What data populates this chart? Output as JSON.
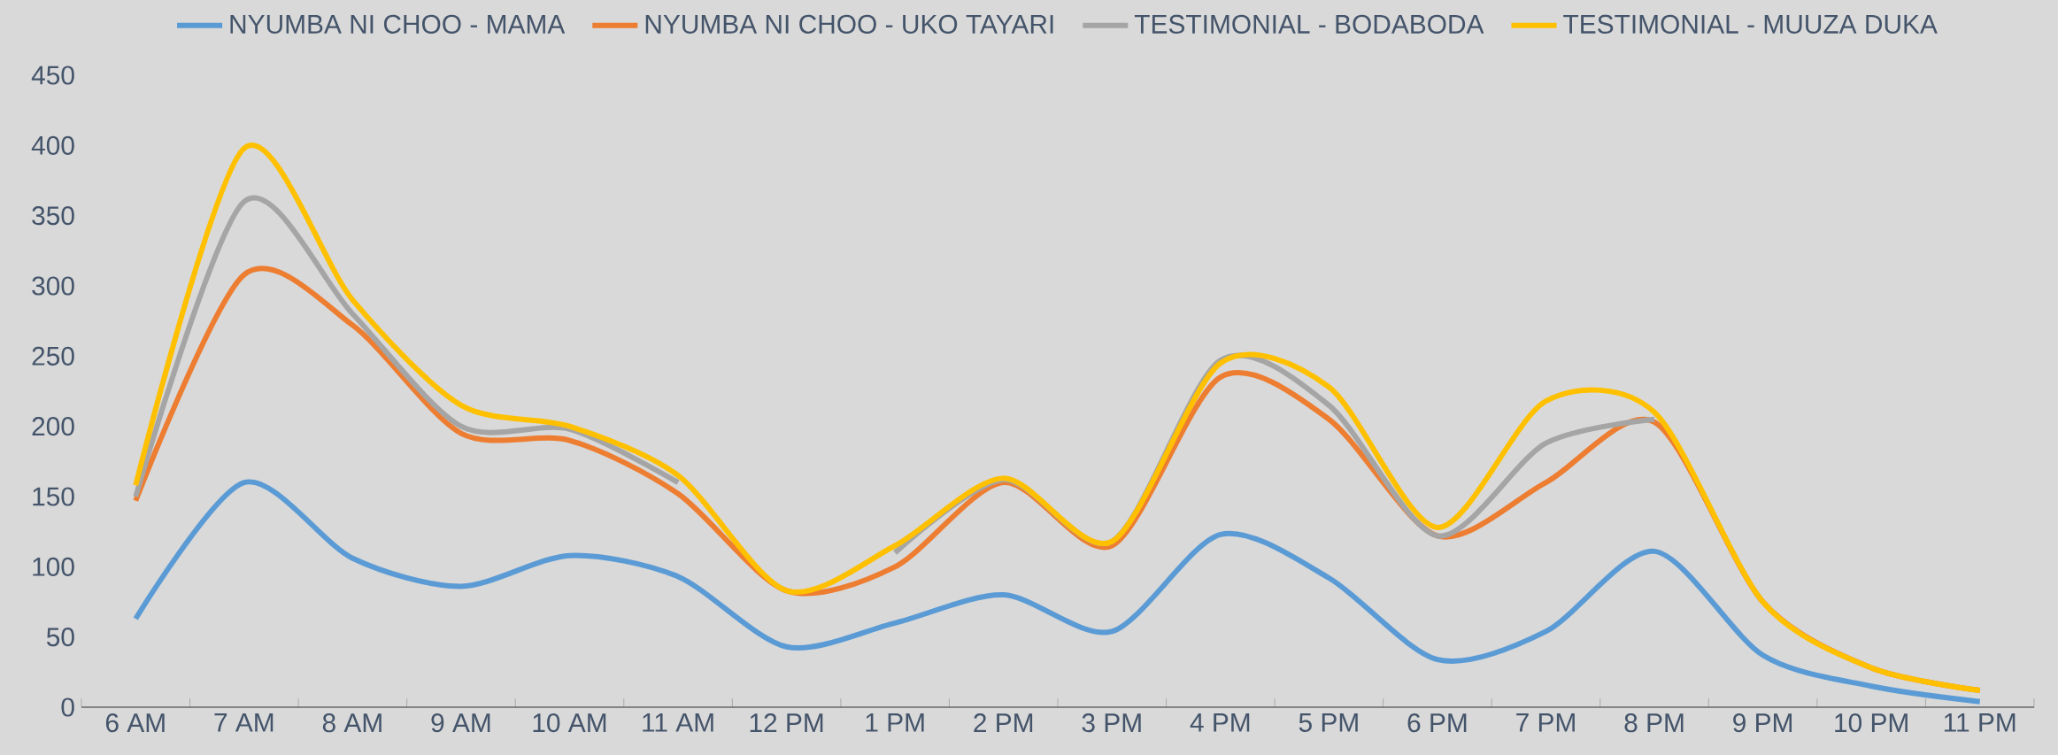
{
  "chart_data": {
    "type": "line",
    "categories": [
      "6 AM",
      "7 AM",
      "8 AM",
      "9 AM",
      "10 AM",
      "11 AM",
      "12 PM",
      "1 PM",
      "2 PM",
      "3 PM",
      "4 PM",
      "5 PM",
      "6 PM",
      "7 PM",
      "8 PM",
      "9 PM",
      "10 PM",
      "11 PM"
    ],
    "series": [
      {
        "name": "NYUMBA NI CHOO - MAMA",
        "color": "#5b9bd5",
        "values": [
          63,
          160,
          106,
          86,
          108,
          93,
          43,
          60,
          80,
          54,
          123,
          92,
          34,
          54,
          111,
          37,
          15,
          4
        ]
      },
      {
        "name": "NYUMBA NI CHOO - UKO TAYARI",
        "color": "#ed7d31",
        "values": [
          147,
          308,
          272,
          195,
          190,
          152,
          83,
          100,
          160,
          115,
          235,
          205,
          122,
          160,
          203,
          75,
          28,
          12
        ]
      },
      {
        "name": "TESTIMONIAL - BODABODA",
        "color": "#a5a5a5",
        "values": [
          150,
          360,
          280,
          200,
          198,
          160,
          null,
          110,
          162,
          118,
          247,
          215,
          122,
          188,
          205,
          null,
          null,
          null
        ]
      },
      {
        "name": "TESTIMONIAL - MUUZA DUKA",
        "color": "#ffc000",
        "values": [
          158,
          398,
          290,
          215,
          200,
          165,
          83,
          115,
          163,
          118,
          245,
          228,
          128,
          218,
          210,
          75,
          28,
          12
        ]
      }
    ],
    "ylim": [
      0,
      450
    ],
    "yticks": [
      0,
      50,
      100,
      150,
      200,
      250,
      300,
      350,
      400,
      450
    ],
    "legend": "top"
  }
}
